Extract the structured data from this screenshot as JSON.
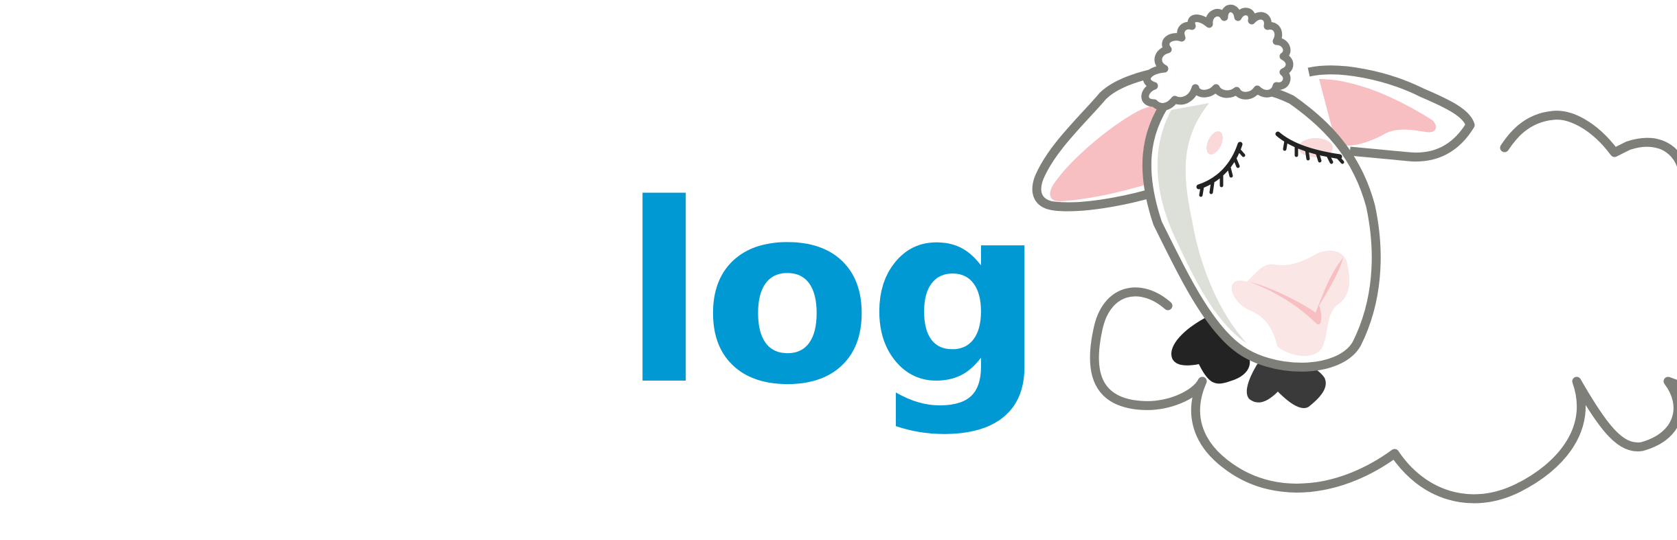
{
  "logo": {
    "wordmark": "log",
    "mascot": "sheep-mascot-icon",
    "colors": {
      "wordmark": "#0099d3",
      "outline": "#7d7f78",
      "pink": "#f7bfc2",
      "dark": "#232323",
      "background": "#ffffff"
    }
  }
}
